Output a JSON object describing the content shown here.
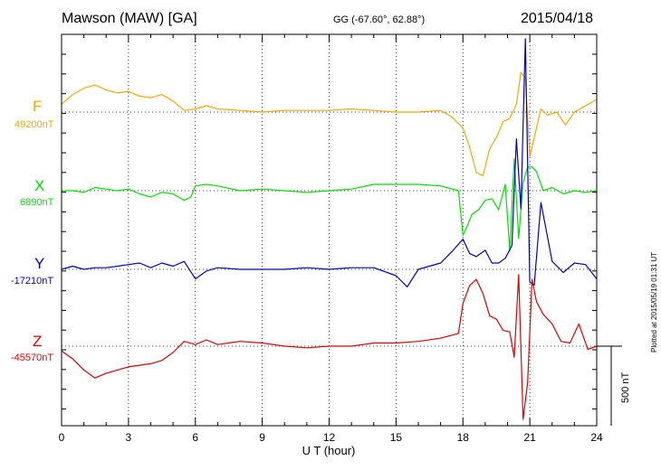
{
  "header": {
    "station": "Mawson (MAW)  [GA]",
    "coords": "GG (-67.60°,  62.88°)",
    "date": "2015/04/18"
  },
  "footer": {
    "plotted": "Plotted at 2015/05/19 01:31  UT"
  },
  "colors": {
    "F": "#f5a800",
    "X": "#00e000",
    "Y": "#0000d0",
    "Z": "#e00000"
  },
  "channels": [
    {
      "name": "F",
      "baseline": "49200nT",
      "color": "#f5a800"
    },
    {
      "name": "X",
      "baseline": "6890nT",
      "color": "#00e000"
    },
    {
      "name": "Y",
      "baseline": "-17210nT",
      "color": "#0000d0"
    },
    {
      "name": "Z",
      "baseline": "-45570nT",
      "color": "#e00000"
    }
  ],
  "scale_bar": {
    "label": "500 nT",
    "value_nT": 500
  },
  "chart_data": {
    "type": "line",
    "title": "Mawson (MAW)  [GA]",
    "xlabel": "U T (hour)",
    "ylabel": "",
    "xlim": [
      0,
      24
    ],
    "x_ticks": [
      0,
      3,
      6,
      9,
      12,
      15,
      18,
      21,
      24
    ],
    "grid": true,
    "units": "nT",
    "series": [
      {
        "name": "F",
        "baseline_nT": 49200,
        "x": [
          0,
          0.5,
          1,
          1.5,
          2,
          2.5,
          3,
          3.5,
          4,
          4.5,
          5,
          5.5,
          6,
          6.5,
          7,
          8,
          9,
          10,
          11,
          12,
          13,
          14,
          15,
          16,
          17,
          17.5,
          18,
          18.3,
          18.6,
          18.9,
          19.2,
          19.5,
          19.8,
          20.1,
          20.4,
          20.6,
          20.8,
          21,
          21.2,
          21.5,
          21.8,
          22.2,
          22.6,
          23,
          23.5,
          24
        ],
        "values": [
          50,
          110,
          150,
          170,
          140,
          120,
          130,
          100,
          90,
          110,
          70,
          10,
          20,
          40,
          20,
          10,
          0,
          10,
          10,
          10,
          20,
          10,
          0,
          0,
          10,
          -30,
          -100,
          -220,
          -380,
          -400,
          -230,
          -160,
          -60,
          -40,
          50,
          250,
          210,
          -280,
          -160,
          20,
          -20,
          0,
          -80,
          0,
          40,
          80
        ]
      },
      {
        "name": "X",
        "baseline_nT": 6890,
        "x": [
          0,
          0.5,
          1,
          1.5,
          2,
          2.5,
          3,
          3.5,
          4,
          4.5,
          5,
          5.5,
          5.8,
          6,
          6.5,
          7,
          8,
          9,
          10,
          11,
          12,
          13,
          14,
          15,
          16,
          17,
          17.8,
          18,
          18.2,
          18.4,
          18.7,
          19,
          19.3,
          19.6,
          19.9,
          20.1,
          20.3,
          20.5,
          20.7,
          20.9,
          21.1,
          21.3,
          21.6,
          22,
          22.5,
          23,
          23.5,
          24
        ],
        "values": [
          0,
          0,
          -10,
          20,
          10,
          0,
          10,
          -20,
          -40,
          -10,
          -20,
          -60,
          -40,
          30,
          40,
          30,
          0,
          10,
          0,
          -10,
          0,
          10,
          40,
          40,
          40,
          30,
          0,
          -280,
          -220,
          -150,
          -120,
          -60,
          -50,
          -120,
          40,
          -380,
          200,
          -300,
          50,
          150,
          150,
          120,
          0,
          20,
          -20,
          0,
          -10,
          0
        ]
      },
      {
        "name": "Y",
        "baseline_nT": -17210,
        "x": [
          0,
          0.5,
          1,
          1.5,
          2,
          2.5,
          3,
          3.5,
          4,
          4.5,
          5,
          5.5,
          6,
          6.5,
          7,
          8,
          9,
          10,
          11,
          12,
          13,
          14,
          15,
          15.5,
          16,
          17,
          17.5,
          18,
          18.3,
          18.6,
          19,
          19.3,
          19.6,
          19.9,
          20.2,
          20.4,
          20.6,
          20.8,
          21,
          21.2,
          21.5,
          22,
          22.5,
          23,
          23.5,
          24
        ],
        "values": [
          0,
          20,
          0,
          10,
          10,
          20,
          30,
          40,
          10,
          40,
          20,
          50,
          -60,
          -10,
          10,
          0,
          0,
          0,
          10,
          0,
          10,
          10,
          -40,
          -110,
          0,
          40,
          110,
          190,
          100,
          80,
          120,
          40,
          40,
          70,
          150,
          820,
          380,
          1450,
          -80,
          -100,
          420,
          50,
          -20,
          40,
          30,
          -60
        ]
      },
      {
        "name": "Z",
        "baseline_nT": -45570,
        "x": [
          0,
          0.5,
          1,
          1.5,
          2,
          2.5,
          3,
          3.5,
          4,
          4.5,
          5,
          5.5,
          6,
          6.5,
          7,
          8,
          9,
          10,
          11,
          12,
          13,
          14,
          15,
          16,
          17,
          17.8,
          18,
          18.3,
          18.6,
          18.9,
          19.2,
          19.5,
          19.8,
          20.1,
          20.3,
          20.5,
          20.7,
          20.9,
          21.1,
          21.3,
          21.6,
          22,
          22.4,
          22.8,
          23.2,
          23.6,
          24
        ],
        "values": [
          -30,
          -80,
          -150,
          -200,
          -170,
          -150,
          -130,
          -120,
          -110,
          -90,
          -40,
          30,
          10,
          40,
          10,
          30,
          20,
          0,
          -10,
          0,
          0,
          20,
          20,
          30,
          50,
          80,
          270,
          380,
          420,
          330,
          190,
          170,
          100,
          90,
          -70,
          450,
          -460,
          -230,
          420,
          280,
          200,
          140,
          30,
          20,
          140,
          -20,
          0
        ]
      }
    ]
  }
}
